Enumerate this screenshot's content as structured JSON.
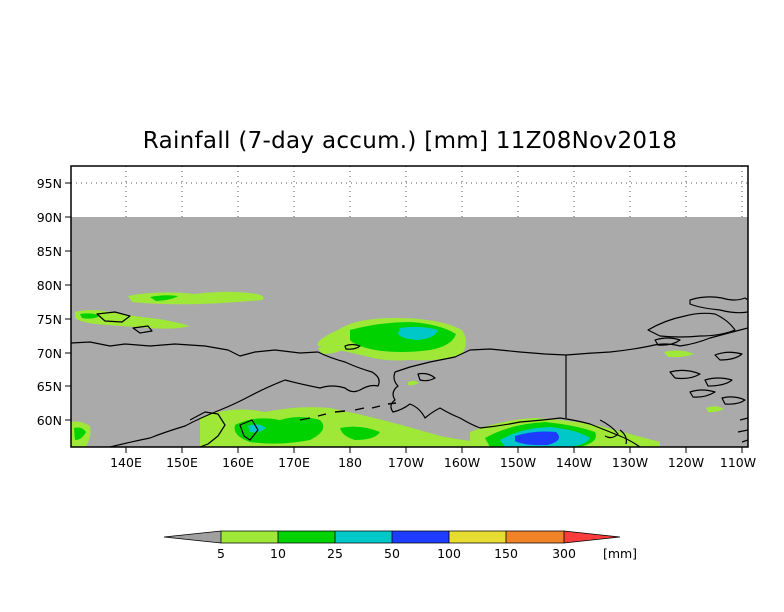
{
  "title": "Rainfall (7-day accum.) [mm] 11Z08Nov2018",
  "lat_labels": [
    "95N",
    "90N",
    "85N",
    "80N",
    "75N",
    "70N",
    "65N",
    "60N"
  ],
  "lon_labels": [
    "140E",
    "150E",
    "160E",
    "170E",
    "180",
    "170W",
    "160W",
    "150W",
    "140W",
    "130W",
    "120W",
    "110W"
  ],
  "legend": {
    "thresholds": [
      "5",
      "10",
      "25",
      "50",
      "100",
      "150",
      "300"
    ],
    "unit": "[mm]",
    "colors": {
      "below": "#a0a0a0",
      "c5_10": "#9fe838",
      "c10_25": "#00d200",
      "c25_50": "#00c8c8",
      "c50_100": "#1e3cff",
      "c100_150": "#e6dc32",
      "c150_300": "#f08228",
      "above": "#fa3c3c"
    }
  },
  "colors": {
    "no_data_gray": "#aaaaaa",
    "grid": "#000000"
  }
}
